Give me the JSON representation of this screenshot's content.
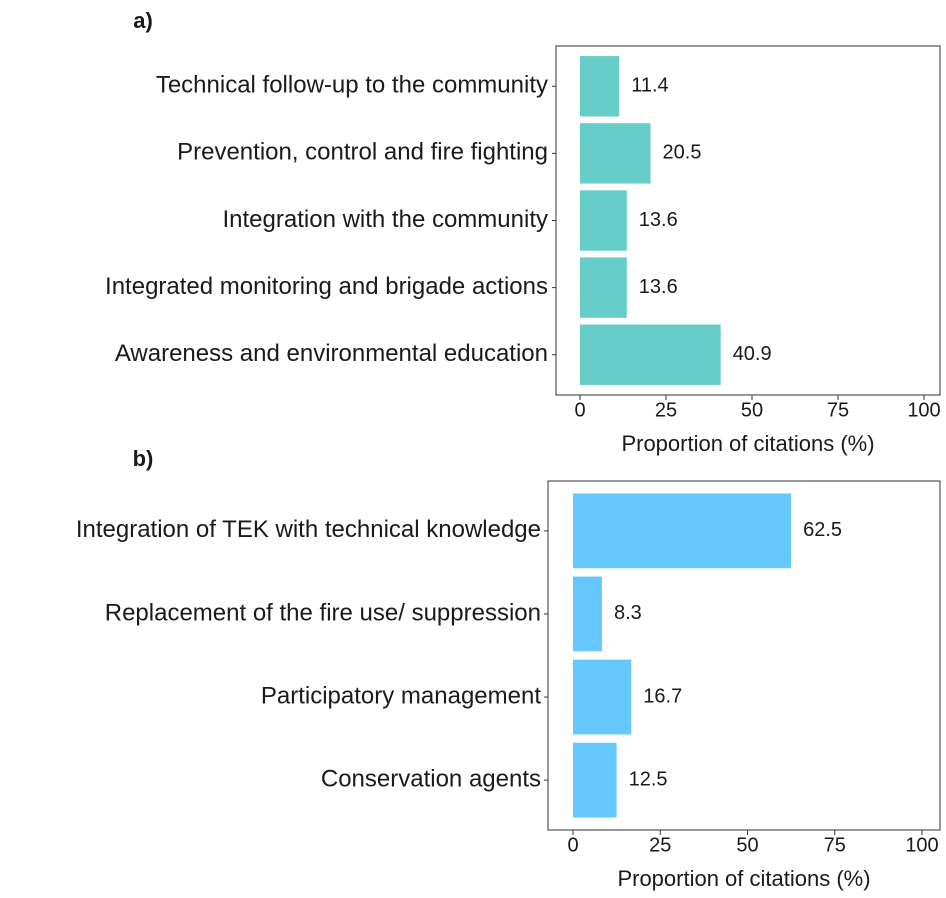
{
  "chart_data": [
    {
      "type": "bar",
      "title": "a)",
      "categories": [
        "Technical follow-up to the community",
        "Prevention, control and fire fighting",
        "Integration with the community",
        "Integrated monitoring and brigade actions",
        "Awareness and environmental education"
      ],
      "values": [
        11.4,
        20.5,
        13.6,
        13.6,
        40.9
      ],
      "color": "#66cdc9",
      "xlim": [
        0,
        100
      ],
      "xticks": [
        0,
        25,
        50,
        75,
        100
      ],
      "xlabel": "Proportion of citations (%)"
    },
    {
      "type": "bar",
      "title": "b)",
      "categories": [
        "Integration of TEK with technical knowledge",
        "Replacement of the fire use/ suppression",
        "Participatory management",
        "Conservation agents"
      ],
      "values": [
        62.5,
        8.3,
        16.7,
        12.5
      ],
      "color": "#66c8ff",
      "xlim": [
        0,
        100
      ],
      "xticks": [
        0,
        25,
        50,
        75,
        100
      ],
      "xlabel": "Proportion of citations (%)"
    }
  ]
}
